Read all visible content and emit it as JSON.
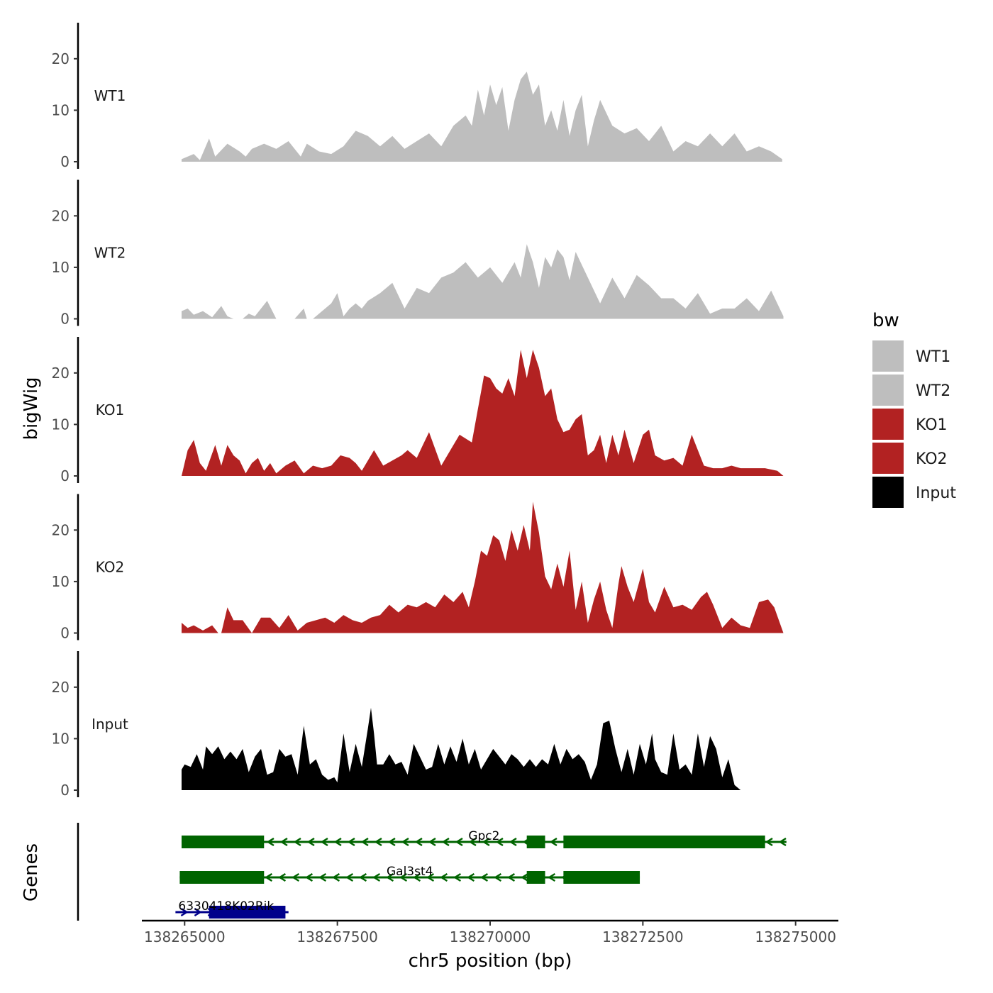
{
  "chart_data": {
    "type": "area",
    "xlabel": "chr5 position (bp)",
    "ylabel": "bigWig",
    "gene_panel_label": "Genes",
    "xlim": [
      138264300,
      138275700
    ],
    "x_ticks": [
      138265000,
      138267500,
      138270000,
      138272500,
      138275000
    ],
    "x_tick_labels": [
      "138265000",
      "138267500",
      "138270000",
      "138272500",
      "138275000"
    ],
    "ylim": [
      0,
      27
    ],
    "y_ticks": [
      0,
      10,
      20
    ],
    "y_tick_labels": [
      "0",
      "10",
      "20"
    ],
    "legend": {
      "title": "bw",
      "position": "right",
      "entries": [
        {
          "label": "WT1",
          "color": "#bebebe"
        },
        {
          "label": "WT2",
          "color": "#bebebe"
        },
        {
          "label": "KO1",
          "color": "#b22222"
        },
        {
          "label": "KO2",
          "color": "#b22222"
        },
        {
          "label": "Input",
          "color": "#000000"
        }
      ]
    },
    "tracks": [
      {
        "name": "WT1",
        "label": "WT1",
        "color": "#bebebe",
        "x": [
          138264950,
          138265150,
          138265250,
          138265400,
          138265500,
          138265700,
          138265900,
          138266000,
          138266100,
          138266300,
          138266500,
          138266700,
          138266900,
          138267000,
          138267200,
          138267400,
          138267600,
          138267800,
          138268000,
          138268200,
          138268400,
          138268600,
          138268800,
          138269000,
          138269200,
          138269400,
          138269600,
          138269700,
          138269800,
          138269900,
          138270000,
          138270100,
          138270200,
          138270300,
          138270400,
          138270500,
          138270600,
          138270700,
          138270800,
          138270900,
          138271000,
          138271100,
          138271200,
          138271300,
          138271400,
          138271500,
          138271600,
          138271700,
          138271800,
          138272000,
          138272200,
          138272400,
          138272600,
          138272800,
          138273000,
          138273200,
          138273400,
          138273600,
          138273800,
          138274000,
          138274200,
          138274400,
          138274600,
          138274780
        ],
        "values": [
          0.5,
          1.5,
          0.3,
          4.5,
          1.0,
          3.5,
          2.0,
          1.0,
          2.5,
          3.5,
          2.5,
          4.0,
          1.0,
          3.5,
          2.0,
          1.5,
          3.0,
          6.0,
          5.0,
          3.0,
          5.0,
          2.5,
          4.0,
          5.5,
          3.0,
          7.0,
          9.0,
          7.0,
          14.0,
          9.0,
          15.0,
          11.0,
          14.5,
          6.0,
          12.0,
          16.0,
          17.5,
          13.0,
          15.0,
          7.0,
          10.0,
          6.0,
          12.0,
          5.0,
          10.0,
          13.0,
          3.0,
          8.0,
          12.0,
          7.0,
          5.5,
          6.5,
          4.0,
          7.0,
          2.0,
          4.0,
          3.0,
          5.5,
          3.0,
          5.5,
          2.0,
          3.0,
          2.0,
          0.5
        ]
      },
      {
        "name": "WT2",
        "label": "WT2",
        "color": "#bebebe",
        "x": [
          138264950,
          138265050,
          138265150,
          138265300,
          138265450,
          138265600,
          138265700,
          138265800,
          138265950,
          138266050,
          138266150,
          138266350,
          138266500,
          138266650,
          138266800,
          138266950,
          138267000,
          138267100,
          138267200,
          138267300,
          138267400,
          138267500,
          138267600,
          138267700,
          138267800,
          138267900,
          138268000,
          138268200,
          138268400,
          138268600,
          138268800,
          138269000,
          138269200,
          138269400,
          138269600,
          138269800,
          138270000,
          138270200,
          138270400,
          138270500,
          138270600,
          138270700,
          138270800,
          138270900,
          138271000,
          138271100,
          138271200,
          138271300,
          138271400,
          138271600,
          138271800,
          138272000,
          138272200,
          138272400,
          138272600,
          138272800,
          138273000,
          138273200,
          138273400,
          138273600,
          138273800,
          138274000,
          138274200,
          138274400,
          138274600,
          138274800
        ],
        "values": [
          1.5,
          2.0,
          0.8,
          1.5,
          0.3,
          2.5,
          0.5,
          0.0,
          0.0,
          1.0,
          0.5,
          3.5,
          0.0,
          0.0,
          0.0,
          2.0,
          0.0,
          0.0,
          1.0,
          2.0,
          3.0,
          5.0,
          0.5,
          2.0,
          3.0,
          2.0,
          3.5,
          5.0,
          7.0,
          2.0,
          6.0,
          5.0,
          8.0,
          9.0,
          11.0,
          8.0,
          10.0,
          7.0,
          11.0,
          8.0,
          14.5,
          11.0,
          6.0,
          12.0,
          10.0,
          13.5,
          12.0,
          7.5,
          13.0,
          8.0,
          3.0,
          8.0,
          4.0,
          8.5,
          6.5,
          4.0,
          4.0,
          2.0,
          5.0,
          1.0,
          2.0,
          2.0,
          4.0,
          1.5,
          5.5,
          0.5
        ]
      },
      {
        "name": "KO1",
        "label": "KO1",
        "color": "#b22222",
        "x": [
          138264950,
          138265050,
          138265150,
          138265250,
          138265350,
          138265500,
          138265600,
          138265700,
          138265800,
          138265900,
          138266000,
          138266100,
          138266200,
          138266300,
          138266400,
          138266500,
          138266650,
          138266800,
          138266950,
          138267100,
          138267250,
          138267400,
          138267550,
          138267700,
          138267800,
          138267900,
          138268000,
          138268100,
          138268250,
          138268400,
          138268550,
          138268650,
          138268800,
          138268900,
          138269000,
          138269200,
          138269400,
          138269500,
          138269700,
          138269900,
          138270000,
          138270100,
          138270200,
          138270300,
          138270400,
          138270500,
          138270600,
          138270700,
          138270800,
          138270900,
          138271000,
          138271100,
          138271200,
          138271300,
          138271400,
          138271500,
          138271600,
          138271700,
          138271800,
          138271900,
          138272000,
          138272100,
          138272200,
          138272350,
          138272500,
          138272600,
          138272700,
          138272850,
          138273000,
          138273150,
          138273300,
          138273500,
          138273650,
          138273800,
          138273950,
          138274100,
          138274300,
          138274500,
          138274700,
          138274800
        ],
        "values": [
          0.0,
          5.0,
          7.0,
          2.5,
          1.0,
          6.0,
          2.0,
          6.0,
          4.0,
          3.0,
          0.5,
          2.5,
          3.5,
          1.0,
          2.5,
          0.5,
          2.0,
          3.0,
          0.5,
          2.0,
          1.5,
          2.0,
          4.0,
          3.5,
          2.5,
          1.0,
          3.0,
          5.0,
          2.0,
          3.0,
          4.0,
          5.0,
          3.5,
          6.0,
          8.5,
          2.0,
          6.0,
          8.0,
          6.5,
          19.5,
          19.0,
          17.0,
          16.0,
          19.0,
          15.5,
          24.5,
          19.0,
          24.5,
          21.0,
          15.5,
          17.0,
          11.0,
          8.5,
          9.0,
          11.0,
          12.0,
          4.0,
          5.0,
          8.0,
          2.5,
          8.0,
          4.0,
          9.0,
          2.5,
          8.0,
          9.0,
          4.0,
          3.0,
          3.5,
          2.0,
          8.0,
          2.0,
          1.5,
          1.5,
          2.0,
          1.5,
          1.5,
          1.5,
          1.0,
          0.0
        ]
      },
      {
        "name": "KO2",
        "label": "KO2",
        "color": "#b22222",
        "x": [
          138264950,
          138265050,
          138265150,
          138265300,
          138265450,
          138265550,
          138265600,
          138265700,
          138265800,
          138265950,
          138266100,
          138266250,
          138266400,
          138266550,
          138266700,
          138266850,
          138267000,
          138267150,
          138267300,
          138267450,
          138267600,
          138267750,
          138267900,
          138268050,
          138268200,
          138268350,
          138268500,
          138268650,
          138268800,
          138268950,
          138269100,
          138269250,
          138269400,
          138269550,
          138269650,
          138269750,
          138269850,
          138269950,
          138270050,
          138270150,
          138270250,
          138270350,
          138270450,
          138270550,
          138270650,
          138270700,
          138270800,
          138270900,
          138271000,
          138271100,
          138271200,
          138271300,
          138271400,
          138271500,
          138271600,
          138271700,
          138271800,
          138271900,
          138272000,
          138272100,
          138272150,
          138272250,
          138272350,
          138272500,
          138272600,
          138272700,
          138272850,
          138273000,
          138273150,
          138273300,
          138273450,
          138273550,
          138273650,
          138273800,
          138273950,
          138274100,
          138274250,
          138274400,
          138274550,
          138274650,
          138274800
        ],
        "values": [
          2.0,
          1.0,
          1.5,
          0.5,
          1.5,
          0.0,
          0.0,
          5.0,
          2.5,
          2.5,
          0.0,
          3.0,
          3.0,
          1.0,
          3.5,
          0.5,
          2.0,
          2.5,
          3.0,
          2.0,
          3.5,
          2.5,
          2.0,
          3.0,
          3.5,
          5.5,
          4.0,
          5.5,
          5.0,
          6.0,
          5.0,
          7.5,
          6.0,
          8.0,
          5.0,
          10.0,
          16.0,
          15.0,
          19.0,
          18.0,
          14.0,
          20.0,
          16.0,
          21.0,
          16.0,
          25.5,
          19.5,
          11.0,
          8.5,
          13.5,
          9.0,
          16.0,
          4.5,
          10.0,
          2.0,
          6.5,
          10.0,
          4.5,
          1.0,
          9.5,
          13.0,
          9.0,
          6.0,
          12.5,
          6.0,
          4.0,
          9.0,
          5.0,
          5.5,
          4.5,
          7.0,
          8.0,
          5.5,
          1.0,
          3.0,
          1.5,
          1.0,
          6.0,
          6.5,
          5.0,
          0.0
        ]
      },
      {
        "name": "Input",
        "label": "Input",
        "color": "#000000",
        "x": [
          138264950,
          138265000,
          138265100,
          138265200,
          138265300,
          138265350,
          138265450,
          138265550,
          138265650,
          138265750,
          138265850,
          138265950,
          138266050,
          138266150,
          138266250,
          138266350,
          138266450,
          138266550,
          138266650,
          138266750,
          138266850,
          138266950,
          138267050,
          138267150,
          138267250,
          138267350,
          138267450,
          138267500,
          138267600,
          138267700,
          138267800,
          138267900,
          138268000,
          138268050,
          138268100,
          138268150,
          138268250,
          138268350,
          138268450,
          138268550,
          138268650,
          138268750,
          138268850,
          138268950,
          138269050,
          138269150,
          138269250,
          138269350,
          138269450,
          138269550,
          138269650,
          138269750,
          138269850,
          138269950,
          138270050,
          138270150,
          138270250,
          138270350,
          138270450,
          138270550,
          138270650,
          138270750,
          138270850,
          138270950,
          138271050,
          138271150,
          138271250,
          138271350,
          138271450,
          138271550,
          138271650,
          138271750,
          138271850,
          138271950,
          138272050,
          138272150,
          138272250,
          138272350,
          138272450,
          138272550,
          138272650,
          138272700,
          138272800,
          138272900,
          138273000,
          138273100,
          138273200,
          138273300,
          138273400,
          138273500,
          138273600,
          138273700,
          138273800,
          138273900,
          138274000,
          138274100,
          138274200,
          138274300,
          138274400,
          138274500,
          138274600,
          138274700,
          138274780
        ],
        "values": [
          4.0,
          5.0,
          4.5,
          7.0,
          4.0,
          8.5,
          7.0,
          8.5,
          6.0,
          7.5,
          6.0,
          8.0,
          3.5,
          6.5,
          8.0,
          3.0,
          3.5,
          8.0,
          6.5,
          7.0,
          3.0,
          12.5,
          5.0,
          6.0,
          3.0,
          2.0,
          2.5,
          1.5,
          11.0,
          3.5,
          9.0,
          4.5,
          12.0,
          16.0,
          11.0,
          5.0,
          5.0,
          7.0,
          5.0,
          5.5,
          3.0,
          9.0,
          6.5,
          4.0,
          4.5,
          9.0,
          5.0,
          8.5,
          5.5,
          10.0,
          5.0,
          8.0,
          4.0,
          6.0,
          8.0,
          6.5,
          5.0,
          7.0,
          6.0,
          4.5,
          6.0,
          4.5,
          6.0,
          5.0,
          9.0,
          5.0,
          8.0,
          6.0,
          7.0,
          5.5,
          2.0,
          5.0,
          13.0,
          13.5,
          8.0,
          3.5,
          8.0,
          3.0,
          9.0,
          5.0,
          11.0,
          6.0,
          3.5,
          3.0,
          11.0,
          4.0,
          5.0,
          3.0,
          11.0,
          4.5,
          10.5,
          8.0,
          2.5,
          6.0,
          1.0,
          0.0,
          0.0,
          0.0,
          0.0,
          0.0,
          0.0,
          0.0,
          0.0
        ]
      }
    ],
    "genes": [
      {
        "name": "Gpc2",
        "color": "#006400",
        "strand": "-",
        "start": 138264950,
        "end": 138274850,
        "exons": [
          [
            138264950,
            138266300
          ],
          [
            138270600,
            138270900
          ],
          [
            138271200,
            138274500
          ]
        ]
      },
      {
        "name": "Gal3st4",
        "color": "#006400",
        "strand": "-",
        "start": 138264920,
        "end": 138272450,
        "exons": [
          [
            138264920,
            138266300
          ],
          [
            138270600,
            138270900
          ],
          [
            138271200,
            138272450
          ]
        ]
      },
      {
        "name": "6330418K02Rik",
        "color": "#00008b",
        "strand": "+",
        "start": 138264850,
        "end": 138266700,
        "exons": [
          [
            138265400,
            138266650
          ]
        ]
      }
    ]
  }
}
